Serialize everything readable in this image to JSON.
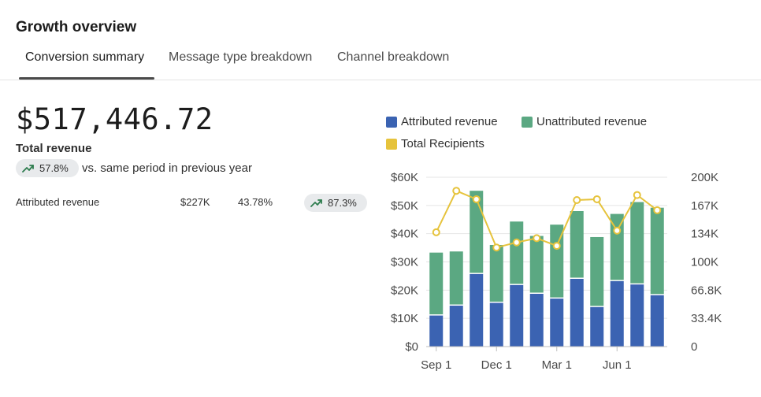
{
  "header": {
    "title": "Growth overview"
  },
  "tabs": [
    {
      "label": "Conversion summary",
      "active": true
    },
    {
      "label": "Message type breakdown",
      "active": false
    },
    {
      "label": "Channel breakdown",
      "active": false
    }
  ],
  "summary": {
    "total_value": "$517,446.72",
    "total_label": "Total revenue",
    "change_badge": "57.8%",
    "change_icon": "trending-up-icon",
    "comparison_text": "vs. same period in previous year"
  },
  "breakdown_rows": [
    {
      "label": "Attributed revenue",
      "amount": "$227K",
      "percent": "43.78%",
      "change": "87.3%"
    }
  ],
  "colors": {
    "attributed": "#3b63b2",
    "unattributed": "#5ba882",
    "recipients": "#e6c33c",
    "trend_icon": "#2e7d4f"
  },
  "chart_data": {
    "type": "bar",
    "stacked": true,
    "legend": [
      "Attributed revenue",
      "Unattributed revenue",
      "Total Recipients"
    ],
    "legend_position": "top",
    "x_tick_labels": [
      "Sep 1",
      "Dec 1",
      "Mar 1",
      "Jun 1"
    ],
    "x_tick_indices": [
      0,
      3,
      6,
      9
    ],
    "y_left_ticks": [
      "$0",
      "$10K",
      "$20K",
      "$30K",
      "$40K",
      "$50K",
      "$60K"
    ],
    "y_right_ticks": [
      "0",
      "33.4K",
      "66.8K",
      "100K",
      "134K",
      "167K",
      "200K"
    ],
    "y_left_lim": [
      0,
      60000
    ],
    "y_right_lim": [
      0,
      200000
    ],
    "series": [
      {
        "name": "Attributed revenue",
        "axis": "left",
        "values": [
          11000,
          14500,
          25700,
          15500,
          21800,
          18700,
          17000,
          24000,
          14000,
          23200,
          22000,
          18200
        ]
      },
      {
        "name": "Unattributed revenue",
        "axis": "left",
        "values": [
          22300,
          19200,
          29500,
          20500,
          22500,
          20500,
          26200,
          24000,
          24800,
          23800,
          29200,
          31000
        ]
      },
      {
        "name": "Total Recipients",
        "axis": "right",
        "type": "line",
        "values": [
          135000,
          184000,
          174000,
          117000,
          123000,
          128000,
          119000,
          173000,
          174000,
          137000,
          179000,
          161000
        ]
      }
    ],
    "grid": true
  }
}
